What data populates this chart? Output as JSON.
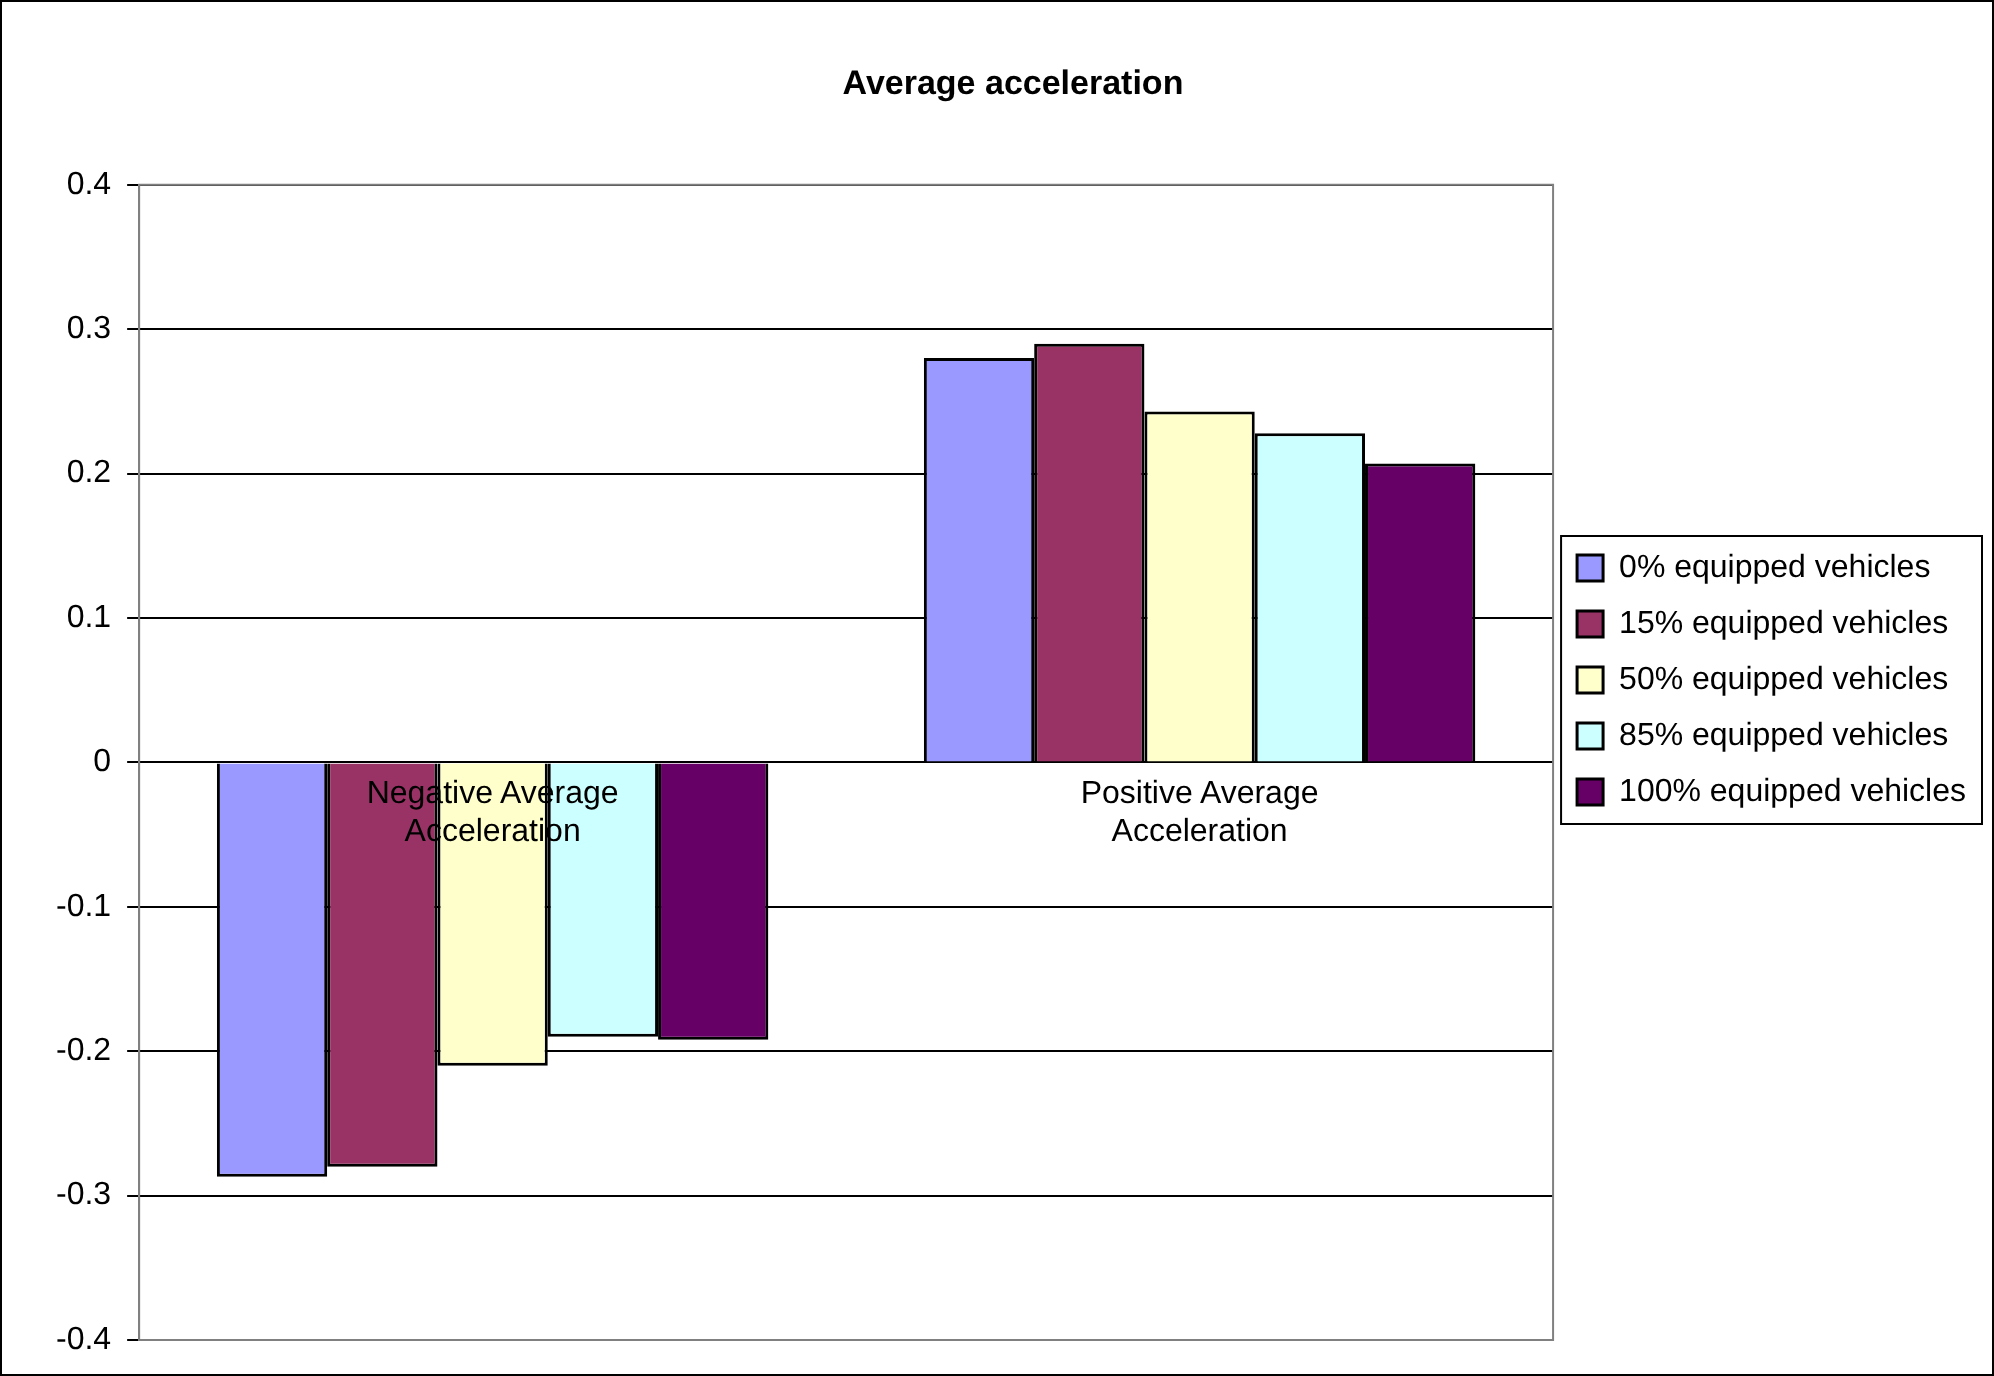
{
  "chart_data": {
    "type": "bar",
    "title": "Average acceleration",
    "categories": [
      "Negative Average Acceleration",
      "Positive Average Acceleration"
    ],
    "series": [
      {
        "name": "0% equipped vehicles",
        "color": "#9999ff",
        "values": [
          -0.287,
          0.28
        ]
      },
      {
        "name": "15% equipped vehicles",
        "color": "#993366",
        "values": [
          -0.28,
          0.29
        ]
      },
      {
        "name": "50% equipped vehicles",
        "color": "#ffffcc",
        "values": [
          -0.21,
          0.243
        ]
      },
      {
        "name": "85% equipped vehicles",
        "color": "#ccffff",
        "values": [
          -0.19,
          0.228
        ]
      },
      {
        "name": "100% equipped vehicles",
        "color": "#660066",
        "values": [
          -0.192,
          0.207
        ]
      }
    ],
    "ylim": [
      -0.4,
      0.4
    ],
    "yticks": [
      -0.4,
      -0.3,
      -0.2,
      -0.1,
      0,
      0.1,
      0.2,
      0.3,
      0.4
    ],
    "grid": "y",
    "legend": "right"
  }
}
